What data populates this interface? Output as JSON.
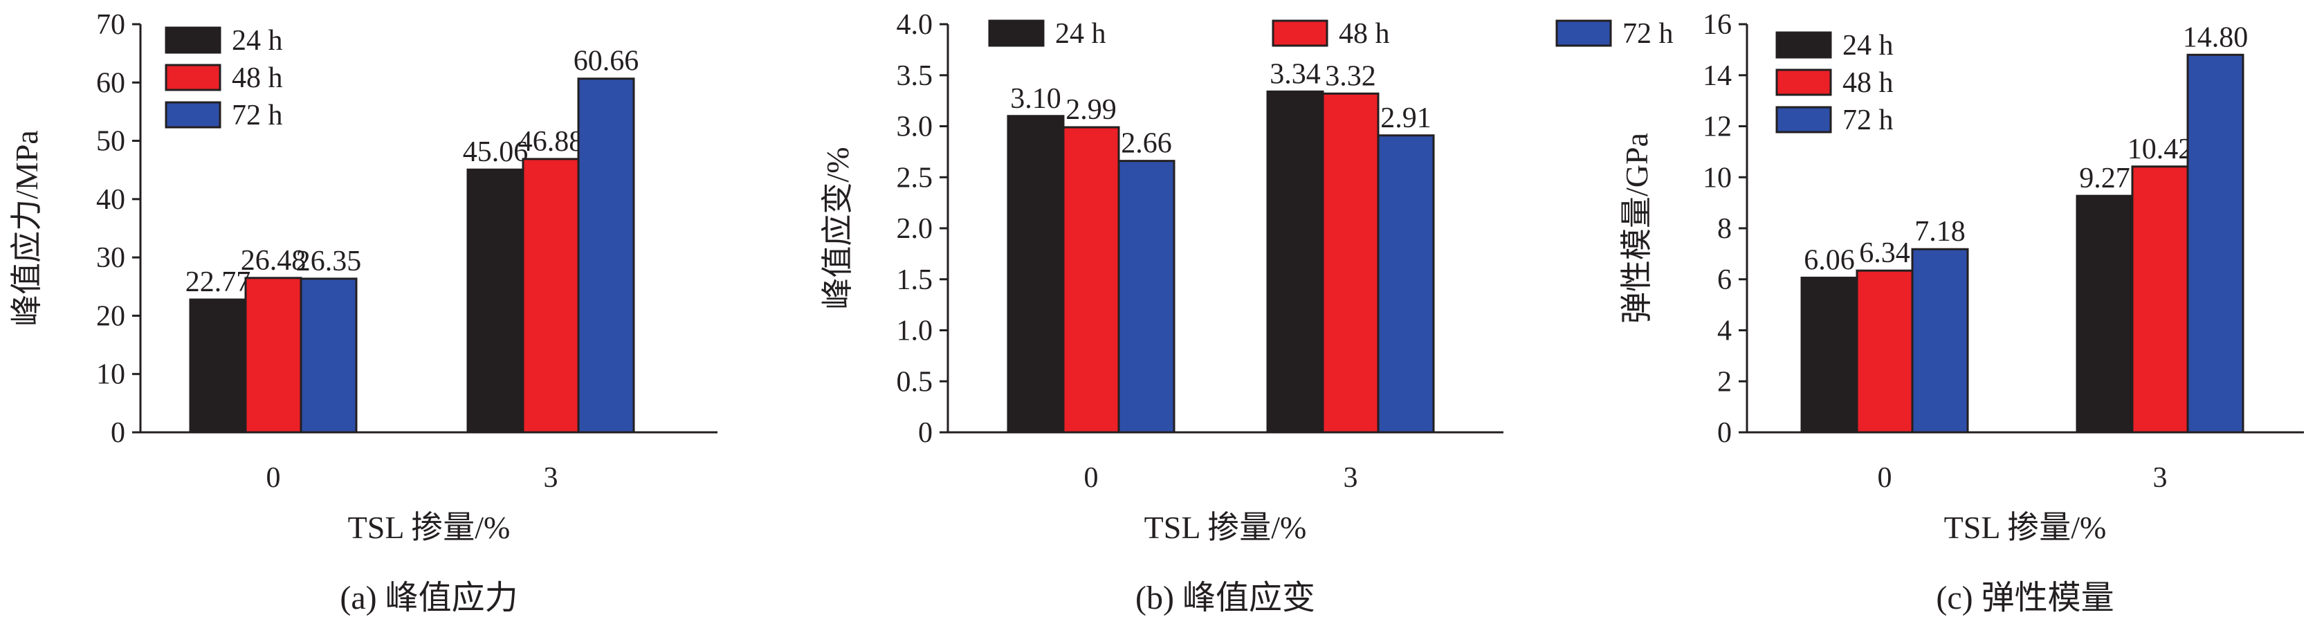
{
  "colors": {
    "24h": "#231f20",
    "48h": "#ec2027",
    "72h": "#2e4fa8",
    "axis": "#231f20"
  },
  "chart_data": [
    {
      "type": "bar",
      "caption": "(a) 峰值应力",
      "xlabel": "TSL 掺量/%",
      "ylabel": "峰值应力/MPa",
      "categories": [
        "0",
        "3"
      ],
      "ylim": [
        0,
        70
      ],
      "yticks": [
        "0",
        "10",
        "20",
        "30",
        "40",
        "50",
        "60",
        "70"
      ],
      "legend_position": "top-left",
      "series": [
        {
          "name": "24 h",
          "values": [
            22.77,
            45.06
          ],
          "labels": [
            "22.77",
            "45.06"
          ]
        },
        {
          "name": "48 h",
          "values": [
            26.48,
            46.88
          ],
          "labels": [
            "26.48",
            "46.88"
          ]
        },
        {
          "name": "72 h",
          "values": [
            26.35,
            60.66
          ],
          "labels": [
            "26.35",
            "60.66"
          ]
        }
      ]
    },
    {
      "type": "bar",
      "caption": "(b) 峰值应变",
      "xlabel": "TSL 掺量/%",
      "ylabel": "峰值应变/%",
      "categories": [
        "0",
        "3"
      ],
      "ylim": [
        0,
        4
      ],
      "yticks": [
        "0",
        "0.5",
        "1.0",
        "1.5",
        "2.0",
        "2.5",
        "3.0",
        "3.5",
        "4.0"
      ],
      "legend_position": "top",
      "series": [
        {
          "name": "24 h",
          "values": [
            3.1,
            3.34
          ],
          "labels": [
            "3.10",
            "3.34"
          ]
        },
        {
          "name": "48 h",
          "values": [
            2.99,
            3.32
          ],
          "labels": [
            "2.99",
            "3.32"
          ]
        },
        {
          "name": "72 h",
          "values": [
            2.66,
            2.91
          ],
          "labels": [
            "2.66",
            "2.91"
          ]
        }
      ]
    },
    {
      "type": "bar",
      "caption": "(c) 弹性模量",
      "xlabel": "TSL 掺量/%",
      "ylabel": "弹性模量/GPa",
      "categories": [
        "0",
        "3"
      ],
      "ylim": [
        0,
        16
      ],
      "yticks": [
        "0",
        "2",
        "4",
        "6",
        "8",
        "10",
        "12",
        "14",
        "16"
      ],
      "legend_position": "top-left",
      "series": [
        {
          "name": "24 h",
          "values": [
            6.06,
            9.27
          ],
          "labels": [
            "6.06",
            "9.27"
          ]
        },
        {
          "name": "48 h",
          "values": [
            6.34,
            10.42
          ],
          "labels": [
            "6.34",
            "10.42"
          ]
        },
        {
          "name": "72 h",
          "values": [
            7.18,
            14.8
          ],
          "labels": [
            "7.18",
            "14.80"
          ]
        }
      ]
    }
  ]
}
